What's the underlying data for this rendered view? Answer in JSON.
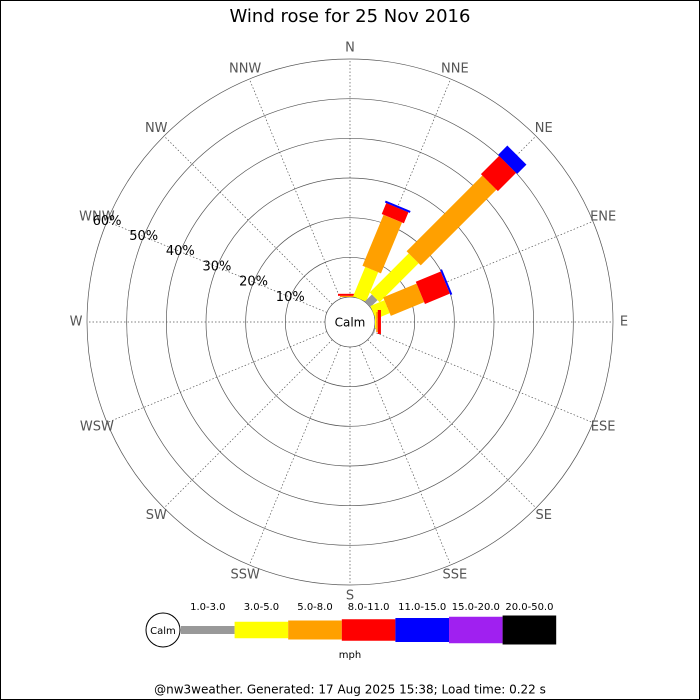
{
  "chart_data": {
    "type": "wind_rose",
    "title": "Wind rose for 25 Nov 2016",
    "directions": [
      "N",
      "NNE",
      "NE",
      "ENE",
      "E",
      "ESE",
      "SE",
      "SSE",
      "S",
      "SSW",
      "SW",
      "WSW",
      "W",
      "WNW",
      "NW",
      "NNW"
    ],
    "calm_label": "Calm",
    "unit": "mph",
    "rlim": [
      0,
      60
    ],
    "rticks": [
      {
        "value": 10,
        "label": "10%"
      },
      {
        "value": 20,
        "label": "20%"
      },
      {
        "value": 30,
        "label": "30%"
      },
      {
        "value": 40,
        "label": "40%"
      },
      {
        "value": 50,
        "label": "50%"
      },
      {
        "value": 60,
        "label": "60%"
      }
    ],
    "series": [
      {
        "name": "1.0-3.0",
        "color": "#999999",
        "values": [
          0,
          0,
          2.5,
          0,
          0,
          0.3,
          0,
          0,
          0,
          0,
          0,
          0,
          0,
          0,
          0,
          0
        ]
      },
      {
        "name": "3.0-5.0",
        "color": "#ffff00",
        "values": [
          0,
          8,
          13.9,
          3.8,
          0.3,
          0,
          0,
          0,
          0,
          0,
          0,
          0,
          0,
          0,
          0,
          0
        ]
      },
      {
        "name": "5.0-8.0",
        "color": "#ffa000",
        "values": [
          0.3,
          13.9,
          27,
          9.1,
          0.4,
          0,
          0,
          0,
          0,
          0,
          0,
          0,
          0,
          0,
          0,
          0
        ]
      },
      {
        "name": "8.0-11.0",
        "color": "#ff0000",
        "values": [
          0.5,
          3,
          6.5,
          6.8,
          0.8,
          0,
          0,
          0,
          0,
          0,
          0,
          0,
          0,
          0,
          0,
          0
        ]
      },
      {
        "name": "11.0-15.0",
        "color": "#0000ff",
        "values": [
          0,
          0.5,
          3.3,
          0.5,
          0,
          0,
          0,
          0,
          0,
          0,
          0,
          0,
          0,
          0,
          0,
          0
        ]
      },
      {
        "name": "15.0-20.0",
        "color": "#a020f0",
        "values": [
          0,
          0,
          0,
          0,
          0,
          0,
          0,
          0,
          0,
          0,
          0,
          0,
          0,
          0,
          0,
          0
        ]
      },
      {
        "name": "20.0-50.0",
        "color": "#000000",
        "values": [
          0,
          0,
          0,
          0,
          0,
          0,
          0,
          0,
          0,
          0,
          0,
          0,
          0,
          0,
          0,
          0
        ]
      }
    ],
    "footer": "@nw3weather. Generated: 17 Aug 2025 15:38; Load time: 0.22 s"
  }
}
